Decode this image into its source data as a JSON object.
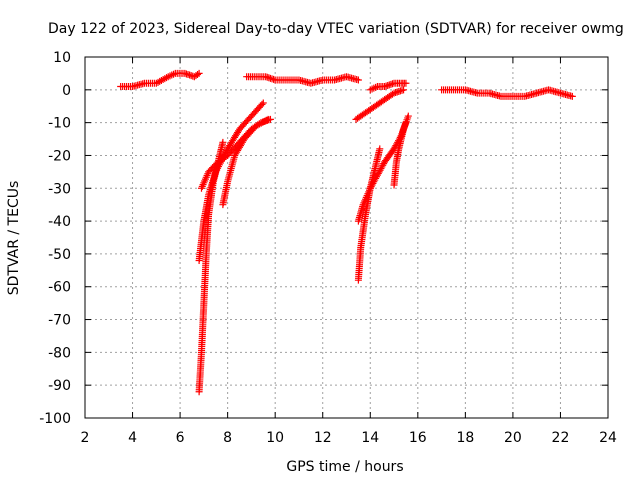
{
  "chart_data": {
    "type": "scatter",
    "title": "Day 122 of 2023, Sidereal Day-to-day VTEC variation (SDTVAR) for receiver owmg",
    "xlabel": "GPS time / hours",
    "ylabel": "SDTVAR / TECUs",
    "xlim": [
      2,
      24
    ],
    "ylim": [
      -100,
      10
    ],
    "xticks": [
      2,
      4,
      6,
      8,
      10,
      12,
      14,
      16,
      18,
      20,
      22,
      24
    ],
    "yticks": [
      10,
      0,
      -10,
      -20,
      -30,
      -40,
      -50,
      -60,
      -70,
      -80,
      -90,
      -100
    ],
    "grid": true,
    "marker": "+",
    "color": "#ff0000",
    "segments": [
      {
        "name": "arc-1",
        "x": [
          3.5,
          4.0,
          4.5,
          5.0,
          5.5,
          5.8,
          6.2,
          6.6,
          6.8
        ],
        "y": [
          1,
          1,
          2,
          2,
          4,
          5,
          5,
          4,
          5
        ]
      },
      {
        "name": "arc-2a",
        "x": [
          6.8,
          6.9,
          7.0,
          7.1,
          7.2,
          7.4,
          7.6,
          7.8
        ],
        "y": [
          -92,
          -80,
          -65,
          -50,
          -38,
          -28,
          -22,
          -16
        ]
      },
      {
        "name": "arc-2b",
        "x": [
          6.8,
          7.0,
          7.2,
          7.5,
          8.0,
          8.5,
          9.0,
          9.5
        ],
        "y": [
          -52,
          -40,
          -32,
          -25,
          -18,
          -12,
          -8,
          -4
        ]
      },
      {
        "name": "arc-2c",
        "x": [
          6.9,
          7.2,
          7.6,
          8.0,
          8.5,
          9.0,
          9.4,
          9.8
        ],
        "y": [
          -30,
          -25,
          -22,
          -20,
          -16,
          -12,
          -10,
          -9
        ]
      },
      {
        "name": "arc-2d",
        "x": [
          7.8,
          8.0,
          8.3,
          8.7,
          9.2,
          9.7
        ],
        "y": [
          -35,
          -28,
          -20,
          -15,
          -11,
          -9
        ]
      },
      {
        "name": "arc-3",
        "x": [
          8.8,
          9.2,
          9.6,
          10.0,
          10.5,
          11.0,
          11.5,
          12.0,
          12.5,
          13.0,
          13.5
        ],
        "y": [
          4,
          4,
          4,
          3,
          3,
          3,
          2,
          3,
          3,
          4,
          3
        ]
      },
      {
        "name": "arc-4a",
        "x": [
          13.5,
          13.6,
          13.8,
          14.0,
          14.2,
          14.4
        ],
        "y": [
          -58,
          -48,
          -38,
          -30,
          -24,
          -18
        ]
      },
      {
        "name": "arc-4b",
        "x": [
          13.5,
          13.7,
          14.0,
          14.3,
          14.6,
          15.0,
          15.3,
          15.5
        ],
        "y": [
          -40,
          -35,
          -30,
          -26,
          -22,
          -18,
          -14,
          -10
        ]
      },
      {
        "name": "arc-4c",
        "x": [
          13.4,
          13.8,
          14.2,
          14.6,
          15.0,
          15.4
        ],
        "y": [
          -9,
          -7,
          -5,
          -3,
          -1,
          0
        ]
      },
      {
        "name": "arc-4d",
        "x": [
          14.0,
          14.3,
          14.6,
          15.0,
          15.3,
          15.5
        ],
        "y": [
          0,
          1,
          1,
          2,
          2,
          2
        ]
      },
      {
        "name": "arc-4e",
        "x": [
          15.0,
          15.1,
          15.2,
          15.4,
          15.6
        ],
        "y": [
          -29,
          -22,
          -18,
          -12,
          -8
        ]
      },
      {
        "name": "arc-5",
        "x": [
          17.0,
          17.5,
          18.0,
          18.5,
          19.0,
          19.5,
          20.0,
          20.5,
          21.0,
          21.5,
          22.0,
          22.5
        ],
        "y": [
          0,
          0,
          0,
          -1,
          -1,
          -2,
          -2,
          -2,
          -1,
          0,
          -1,
          -2
        ]
      }
    ]
  }
}
